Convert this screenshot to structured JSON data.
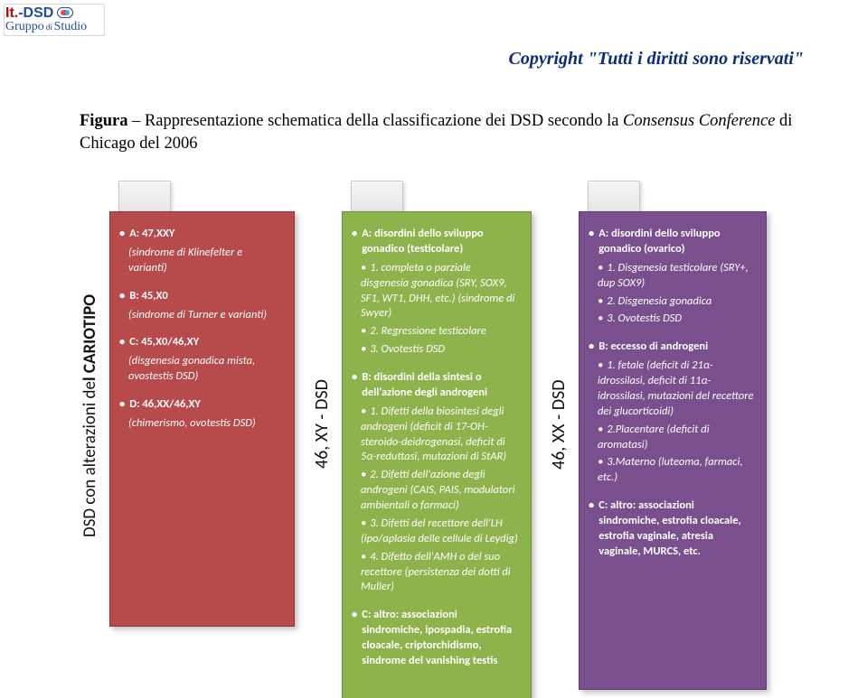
{
  "logo": {
    "it": "It.",
    "dsd": "-DSD",
    "line2_a": "Gruppo",
    "line2_sub": "di",
    "line2_b": "Studio"
  },
  "copyright": "Copyright \"Tutti i diritti sono riservati\"",
  "caption_b": "Figura",
  "caption_rest": " – Rappresentazione schematica della classificazione dei DSD secondo la ",
  "caption_i": "Consensus Conference",
  "caption_tail": " di Chicago del 2006",
  "columns": [
    {
      "vert": "DSD con alterazioni del CARIOTIPO",
      "vert_weight_split": 22,
      "panel_class": "p1",
      "sections": [
        {
          "hd": "A:  47,XXY",
          "sub": "(sindrome di Klinefelter e varianti)",
          "items": []
        },
        {
          "hd": "B:  45,X0",
          "sub": "(sindrome di Turner e varianti)",
          "items": []
        },
        {
          "hd": "C:  45,X0/46,XY",
          "sub": "(disgenesia gonadica mista, ovostestis DSD)",
          "items": []
        },
        {
          "hd": "D:  46,XX/46,XY",
          "sub": "(chimerismo, ovotestis DSD)",
          "items": []
        }
      ]
    },
    {
      "vert": "46, XY - DSD",
      "panel_class": "p2",
      "sections": [
        {
          "hd": "A:  disordini dello sviluppo gonadico (testicolare)",
          "sub": "",
          "items": [
            "1. completa o parziale disgenesia gonadica (SRY, SOX9, SF1, WT1, DHH, etc.) (sindrome di  Swyer)|u",
            "2. Regressione testicolare",
            "3. Ovotestis DSD"
          ]
        },
        {
          "hd": "B:  disordini della sintesi o dell'azione degli androgeni",
          "sub": "",
          "items": [
            "1. Difetti della biosintesi degli androgeni (deficit di 17-OH-steroido-deidrogenasi, deficit di  5α-reduttasi, mutazioni di StAR)",
            "2. Difetti dell'azione degli androgeni (CAIS, PAIS, modulatori ambientali o farmaci)",
            "3. Difetti del recettore dell'LH (ipo/aplasia delle cellule di Leydig)",
            "4. Difetto dell'AMH o del suo recettore (persistenza dei dotti di Muller)"
          ]
        },
        {
          "hd": "C:  altro: associazioni sindromiche, ipospadia, estrofia cloacale, criptorchidismo, sindrome del vanishing testis",
          "sub": "",
          "items": []
        }
      ]
    },
    {
      "vert": "46, XX - DSD",
      "panel_class": "p3",
      "sections": [
        {
          "hd": "A:  disordini dello sviluppo gonadico (ovarico)",
          "sub": "",
          "items": [
            "1. Disgenesia testicolare (SRY+, dup SOX9)|u",
            "2. Disgenesia gonadica",
            "3. Ovotestis DSD"
          ]
        },
        {
          "hd": "B: eccesso di androgeni",
          "sub": "",
          "items": [
            "1. fetale (deficit di 21α-idrossilasi, deficit di 11α-idrossilasi, mutazioni del recettore dei glucorticoidi)",
            "2.Placentare (deficit di aromatasi)",
            "3.Materno (luteoma, farmaci, etc.)"
          ]
        },
        {
          "hd": "C:  altro: associazioni sindromiche, estrofia cloacale, estrofia vaginale, atresia vaginale, MURCS, etc.",
          "sub": "",
          "items": []
        }
      ]
    }
  ]
}
